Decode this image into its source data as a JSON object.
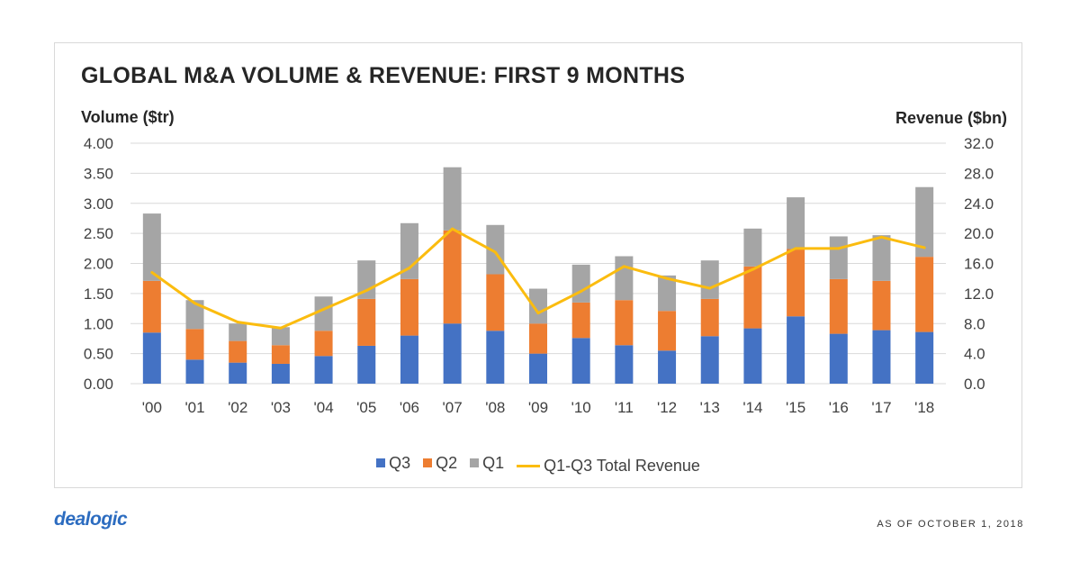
{
  "chart_data": {
    "type": "bar",
    "title": "GLOBAL M&A VOLUME & REVENUE: FIRST 9 MONTHS",
    "ylabel": "Volume ($tr)",
    "y2label": "Revenue ($bn)",
    "ylim": [
      0,
      4
    ],
    "y2lim": [
      0,
      32
    ],
    "yticks": [
      "0.00",
      "0.50",
      "1.00",
      "1.50",
      "2.00",
      "2.50",
      "3.00",
      "3.50",
      "4.00"
    ],
    "y2ticks": [
      "0.0",
      "4.0",
      "8.0",
      "12.0",
      "16.0",
      "20.0",
      "24.0",
      "28.0",
      "32.0"
    ],
    "grid": true,
    "legend_position": "bottom",
    "stacked": true,
    "categories": [
      "'00",
      "'01",
      "'02",
      "'03",
      "'04",
      "'05",
      "'06",
      "'07",
      "'08",
      "'09",
      "'10",
      "'11",
      "'12",
      "'13",
      "'14",
      "'15",
      "'16",
      "'17",
      "'18"
    ],
    "series": [
      {
        "name": "Q3",
        "type": "bar",
        "axis": "left",
        "color": "#4472c4",
        "values": [
          0.85,
          0.4,
          0.35,
          0.33,
          0.46,
          0.63,
          0.8,
          1.0,
          0.88,
          0.5,
          0.76,
          0.64,
          0.55,
          0.79,
          0.92,
          1.12,
          0.83,
          0.89,
          0.86
        ]
      },
      {
        "name": "Q2",
        "type": "bar",
        "axis": "left",
        "color": "#ed7d31",
        "values": [
          0.86,
          0.51,
          0.36,
          0.31,
          0.42,
          0.78,
          0.94,
          1.55,
          0.94,
          0.5,
          0.59,
          0.75,
          0.66,
          0.62,
          1.03,
          1.12,
          0.91,
          0.82,
          1.25
        ]
      },
      {
        "name": "Q1",
        "type": "bar",
        "axis": "left",
        "color": "#a5a5a5",
        "values": [
          1.12,
          0.48,
          0.29,
          0.3,
          0.57,
          0.64,
          0.93,
          1.05,
          0.82,
          0.58,
          0.63,
          0.73,
          0.59,
          0.64,
          0.63,
          0.86,
          0.71,
          0.76,
          1.16
        ]
      },
      {
        "name": "Q1-Q3 Total Revenue",
        "type": "line",
        "axis": "right",
        "color": "#fbbc0f",
        "values": [
          14.8,
          10.7,
          8.2,
          7.4,
          9.9,
          12.4,
          15.4,
          20.6,
          17.5,
          9.4,
          12.3,
          15.6,
          14.0,
          12.7,
          15.2,
          18.0,
          18.0,
          19.5,
          18.1
        ]
      }
    ]
  },
  "footer": {
    "brand": "dealogic",
    "as_of": "AS OF OCTOBER 1, 2018"
  }
}
